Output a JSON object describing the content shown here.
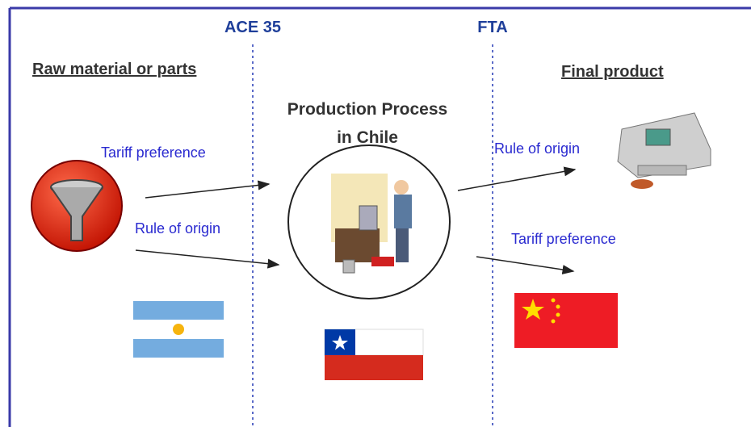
{
  "agreements": [
    "ACE 35",
    "FTA"
  ],
  "columns": {
    "left": "Raw material or parts",
    "right": "Final product"
  },
  "center": {
    "title": [
      "Production Process",
      "in Chile"
    ]
  },
  "arrows": [
    {
      "label": "Tariff preference"
    },
    {
      "label": "Rule of origin"
    },
    {
      "label": "Rule of origin"
    },
    {
      "label": "Tariff preference"
    }
  ]
}
